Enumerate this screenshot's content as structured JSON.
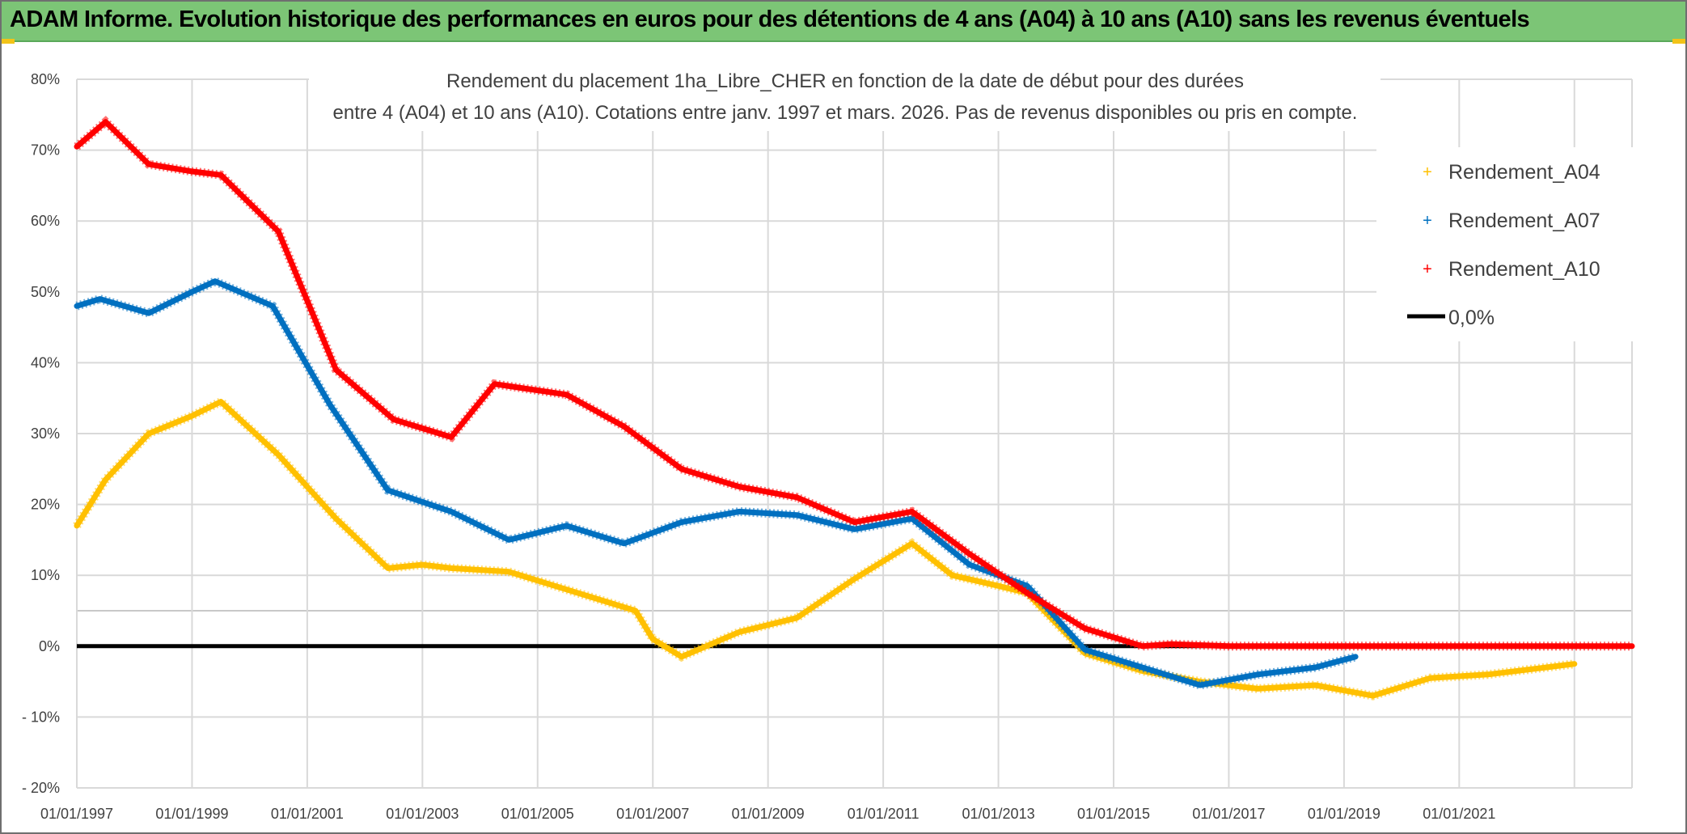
{
  "header": {
    "title": "ADAM Informe. Evolution historique des performances en euros pour des détentions de 4 ans (A04) à 10 ans (A10) sans les revenus éventuels"
  },
  "colors": {
    "header_bg": "#7cc576",
    "header_accent": "#f2c318",
    "A04": "#ffc000",
    "A07": "#0070c0",
    "A10": "#ff0000",
    "zero": "#000000",
    "grid": "#d9d9d9"
  },
  "chart_data": {
    "type": "line",
    "title_lines": [
      "Rendement du placement 1ha_Libre_CHER en fonction de la date de début pour des durées",
      "entre 4 (A04) et 10 ans (A10). Cotations entre janv. 1997 et mars. 2026. Pas de revenus disponibles ou pris en compte."
    ],
    "xlabel": "",
    "ylabel": "",
    "x_range": [
      1997.0,
      2024.0
    ],
    "ylim": [
      -20,
      80
    ],
    "y_ticks": [
      80,
      70,
      60,
      50,
      40,
      30,
      20,
      10,
      0,
      -10,
      -20
    ],
    "y_tick_labels": [
      "80%",
      "70%",
      "60%",
      "50%",
      "40%",
      "30%",
      "20%",
      "10%",
      "0%",
      "- 10%",
      "- 20%"
    ],
    "x_ticks": [
      1997,
      1999,
      2001,
      2003,
      2005,
      2007,
      2009,
      2011,
      2013,
      2015,
      2017,
      2019,
      2021
    ],
    "x_tick_labels": [
      "01/01/1997",
      "01/01/1999",
      "01/01/2001",
      "01/01/2003",
      "01/01/2005",
      "01/01/2007",
      "01/01/2009",
      "01/01/2011",
      "01/01/2013",
      "01/01/2015",
      "01/01/2017",
      "01/01/2019",
      "01/01/2021"
    ],
    "x_grid_years": [
      1997,
      1999,
      2001,
      2003,
      2005,
      2007,
      2009,
      2011,
      2013,
      2015,
      2017,
      2019,
      2021,
      2023
    ],
    "grid": true,
    "legend_position": "top-right",
    "series": [
      {
        "name": "Rendement_A04",
        "color": "#ffc000",
        "x": [
          1997.0,
          1997.5,
          1998.25,
          1999.0,
          1999.5,
          2000.5,
          2001.5,
          2002.4,
          2003.0,
          2003.5,
          2004.5,
          2005.5,
          2006.7,
          2007.0,
          2007.5,
          2008.5,
          2009.5,
          2010.5,
          2011.5,
          2012.2,
          2013.0,
          2013.5,
          2014.5,
          2015.5,
          2016.5,
          2017.5,
          2018.5,
          2019.5,
          2020.5,
          2021.5,
          2022.5,
          2023.0
        ],
        "y": [
          17.0,
          23.5,
          30.0,
          32.5,
          34.5,
          27.0,
          18.0,
          11.0,
          11.5,
          11.0,
          10.5,
          8.0,
          5.0,
          1.0,
          -1.5,
          2.0,
          4.0,
          9.5,
          14.5,
          10.0,
          8.5,
          7.5,
          -1.0,
          -3.5,
          -5.0,
          -6.0,
          -5.5,
          -7.0,
          -4.5,
          -4.0,
          -3.0,
          -2.5
        ]
      },
      {
        "name": "Rendement_A07",
        "color": "#0070c0",
        "x": [
          1997.0,
          1997.4,
          1998.25,
          1999.0,
          1999.4,
          2000.4,
          2001.4,
          2002.4,
          2003.5,
          2004.5,
          2005.5,
          2006.5,
          2007.5,
          2008.5,
          2009.5,
          2010.5,
          2011.5,
          2012.5,
          2013.5,
          2014.5,
          2015.5,
          2016.5,
          2017.5,
          2018.5,
          2019.2
        ],
        "y": [
          48.0,
          49.0,
          47.0,
          50.0,
          51.5,
          48.0,
          34.0,
          22.0,
          19.0,
          15.0,
          17.0,
          14.5,
          17.5,
          19.0,
          18.5,
          16.5,
          18.0,
          11.5,
          8.5,
          -0.5,
          -3.0,
          -5.5,
          -4.0,
          -3.0,
          -1.5
        ]
      },
      {
        "name": "Rendement_A10",
        "color": "#ff0000",
        "x": [
          1997.0,
          1997.5,
          1998.25,
          1999.0,
          1999.5,
          2000.5,
          2001.5,
          2002.5,
          2003.5,
          2004.25,
          2005.5,
          2006.5,
          2007.5,
          2008.5,
          2009.5,
          2010.5,
          2011.5,
          2012.5,
          2013.5,
          2014.5,
          2015.5,
          2016.0,
          2017.0,
          2018.0,
          2019.0,
          2020.0,
          2021.0,
          2022.0,
          2023.0,
          2024.0
        ],
        "y": [
          70.5,
          74.0,
          68.0,
          67.0,
          66.5,
          58.5,
          39.0,
          32.0,
          29.5,
          37.0,
          35.5,
          31.0,
          25.0,
          22.5,
          21.0,
          17.5,
          19.0,
          13.0,
          7.5,
          2.5,
          0.0,
          0.3,
          0.0,
          0.0,
          0.0,
          0.0,
          0.0,
          0.0,
          0.0,
          0.0
        ]
      }
    ],
    "reference_line": {
      "name": "0,0%",
      "value": 0.0,
      "color": "#000000"
    }
  }
}
